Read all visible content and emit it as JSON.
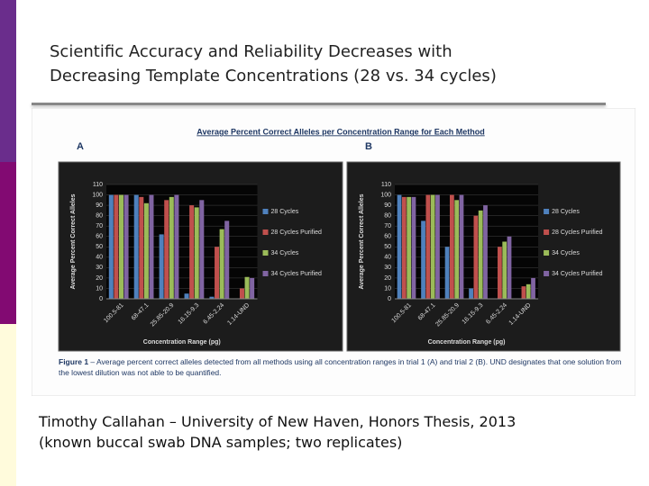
{
  "slide": {
    "title_lines": [
      "Scientific Accuracy and Reliability Decreases with",
      "Decreasing Template Concentrations (28 vs. 34 cycles)"
    ],
    "credit_lines": [
      "Timothy Callahan – University of New Haven, Honors Thesis, 2013",
      "(known buccal swab DNA samples; two replicates)"
    ]
  },
  "figure": {
    "title": "Average Percent Correct Alleles per Concentration Range for Each Method",
    "caption_label": "Figure 1",
    "caption": " – Average percent correct alleles detected from all methods using all concentration ranges in trial 1 (A) and trial 2 (B). UND designates that one solution from the lowest dilution was not able to be quantified."
  },
  "chart_data": [
    {
      "type": "bar",
      "panel": "A",
      "y_label": "Average Percent Correct Alleles",
      "x_label": "Concentration Range (pg)",
      "categories": [
        "100.5-81",
        "68-47.1",
        "25.85-20.9",
        "16.15-9.3",
        "6.45-2.24",
        "1.14-UND"
      ],
      "series": [
        {
          "name": "28 Cycles",
          "color": "#4f81bd",
          "values": [
            100,
            100,
            62,
            5,
            2,
            0
          ]
        },
        {
          "name": "28 Cycles Purified",
          "color": "#c0504d",
          "values": [
            100,
            98,
            95,
            90,
            50,
            10
          ]
        },
        {
          "name": "34 Cycles",
          "color": "#9bbb59",
          "values": [
            100,
            92,
            98,
            88,
            67,
            21
          ]
        },
        {
          "name": "34 Cycles Purified",
          "color": "#8064a2",
          "values": [
            100,
            100,
            100,
            95,
            75,
            20
          ]
        }
      ],
      "ylim": [
        0,
        110
      ],
      "yticks": [
        0,
        10,
        20,
        30,
        40,
        50,
        60,
        70,
        80,
        90,
        100,
        110
      ],
      "grid": true,
      "legend": "right"
    },
    {
      "type": "bar",
      "panel": "B",
      "y_label": "Average Percent Correct Alleles",
      "x_label": "Concentration Range (pg)",
      "categories": [
        "100.5-81",
        "68-47.1",
        "25.85-20.9",
        "16.15-9.3",
        "6.45-2.24",
        "1.14-UND"
      ],
      "series": [
        {
          "name": "28 Cycles",
          "color": "#4f81bd",
          "values": [
            100,
            75,
            50,
            10,
            0,
            0
          ]
        },
        {
          "name": "28 Cycles Purified",
          "color": "#c0504d",
          "values": [
            98,
            100,
            100,
            80,
            50,
            12
          ]
        },
        {
          "name": "34 Cycles",
          "color": "#9bbb59",
          "values": [
            98,
            100,
            95,
            85,
            55,
            14
          ]
        },
        {
          "name": "34 Cycles Purified",
          "color": "#8064a2",
          "values": [
            98,
            100,
            100,
            90,
            60,
            20
          ]
        }
      ],
      "ylim": [
        0,
        110
      ],
      "yticks": [
        0,
        10,
        20,
        30,
        40,
        50,
        60,
        70,
        80,
        90,
        100,
        110
      ],
      "grid": true,
      "legend": "right"
    }
  ]
}
